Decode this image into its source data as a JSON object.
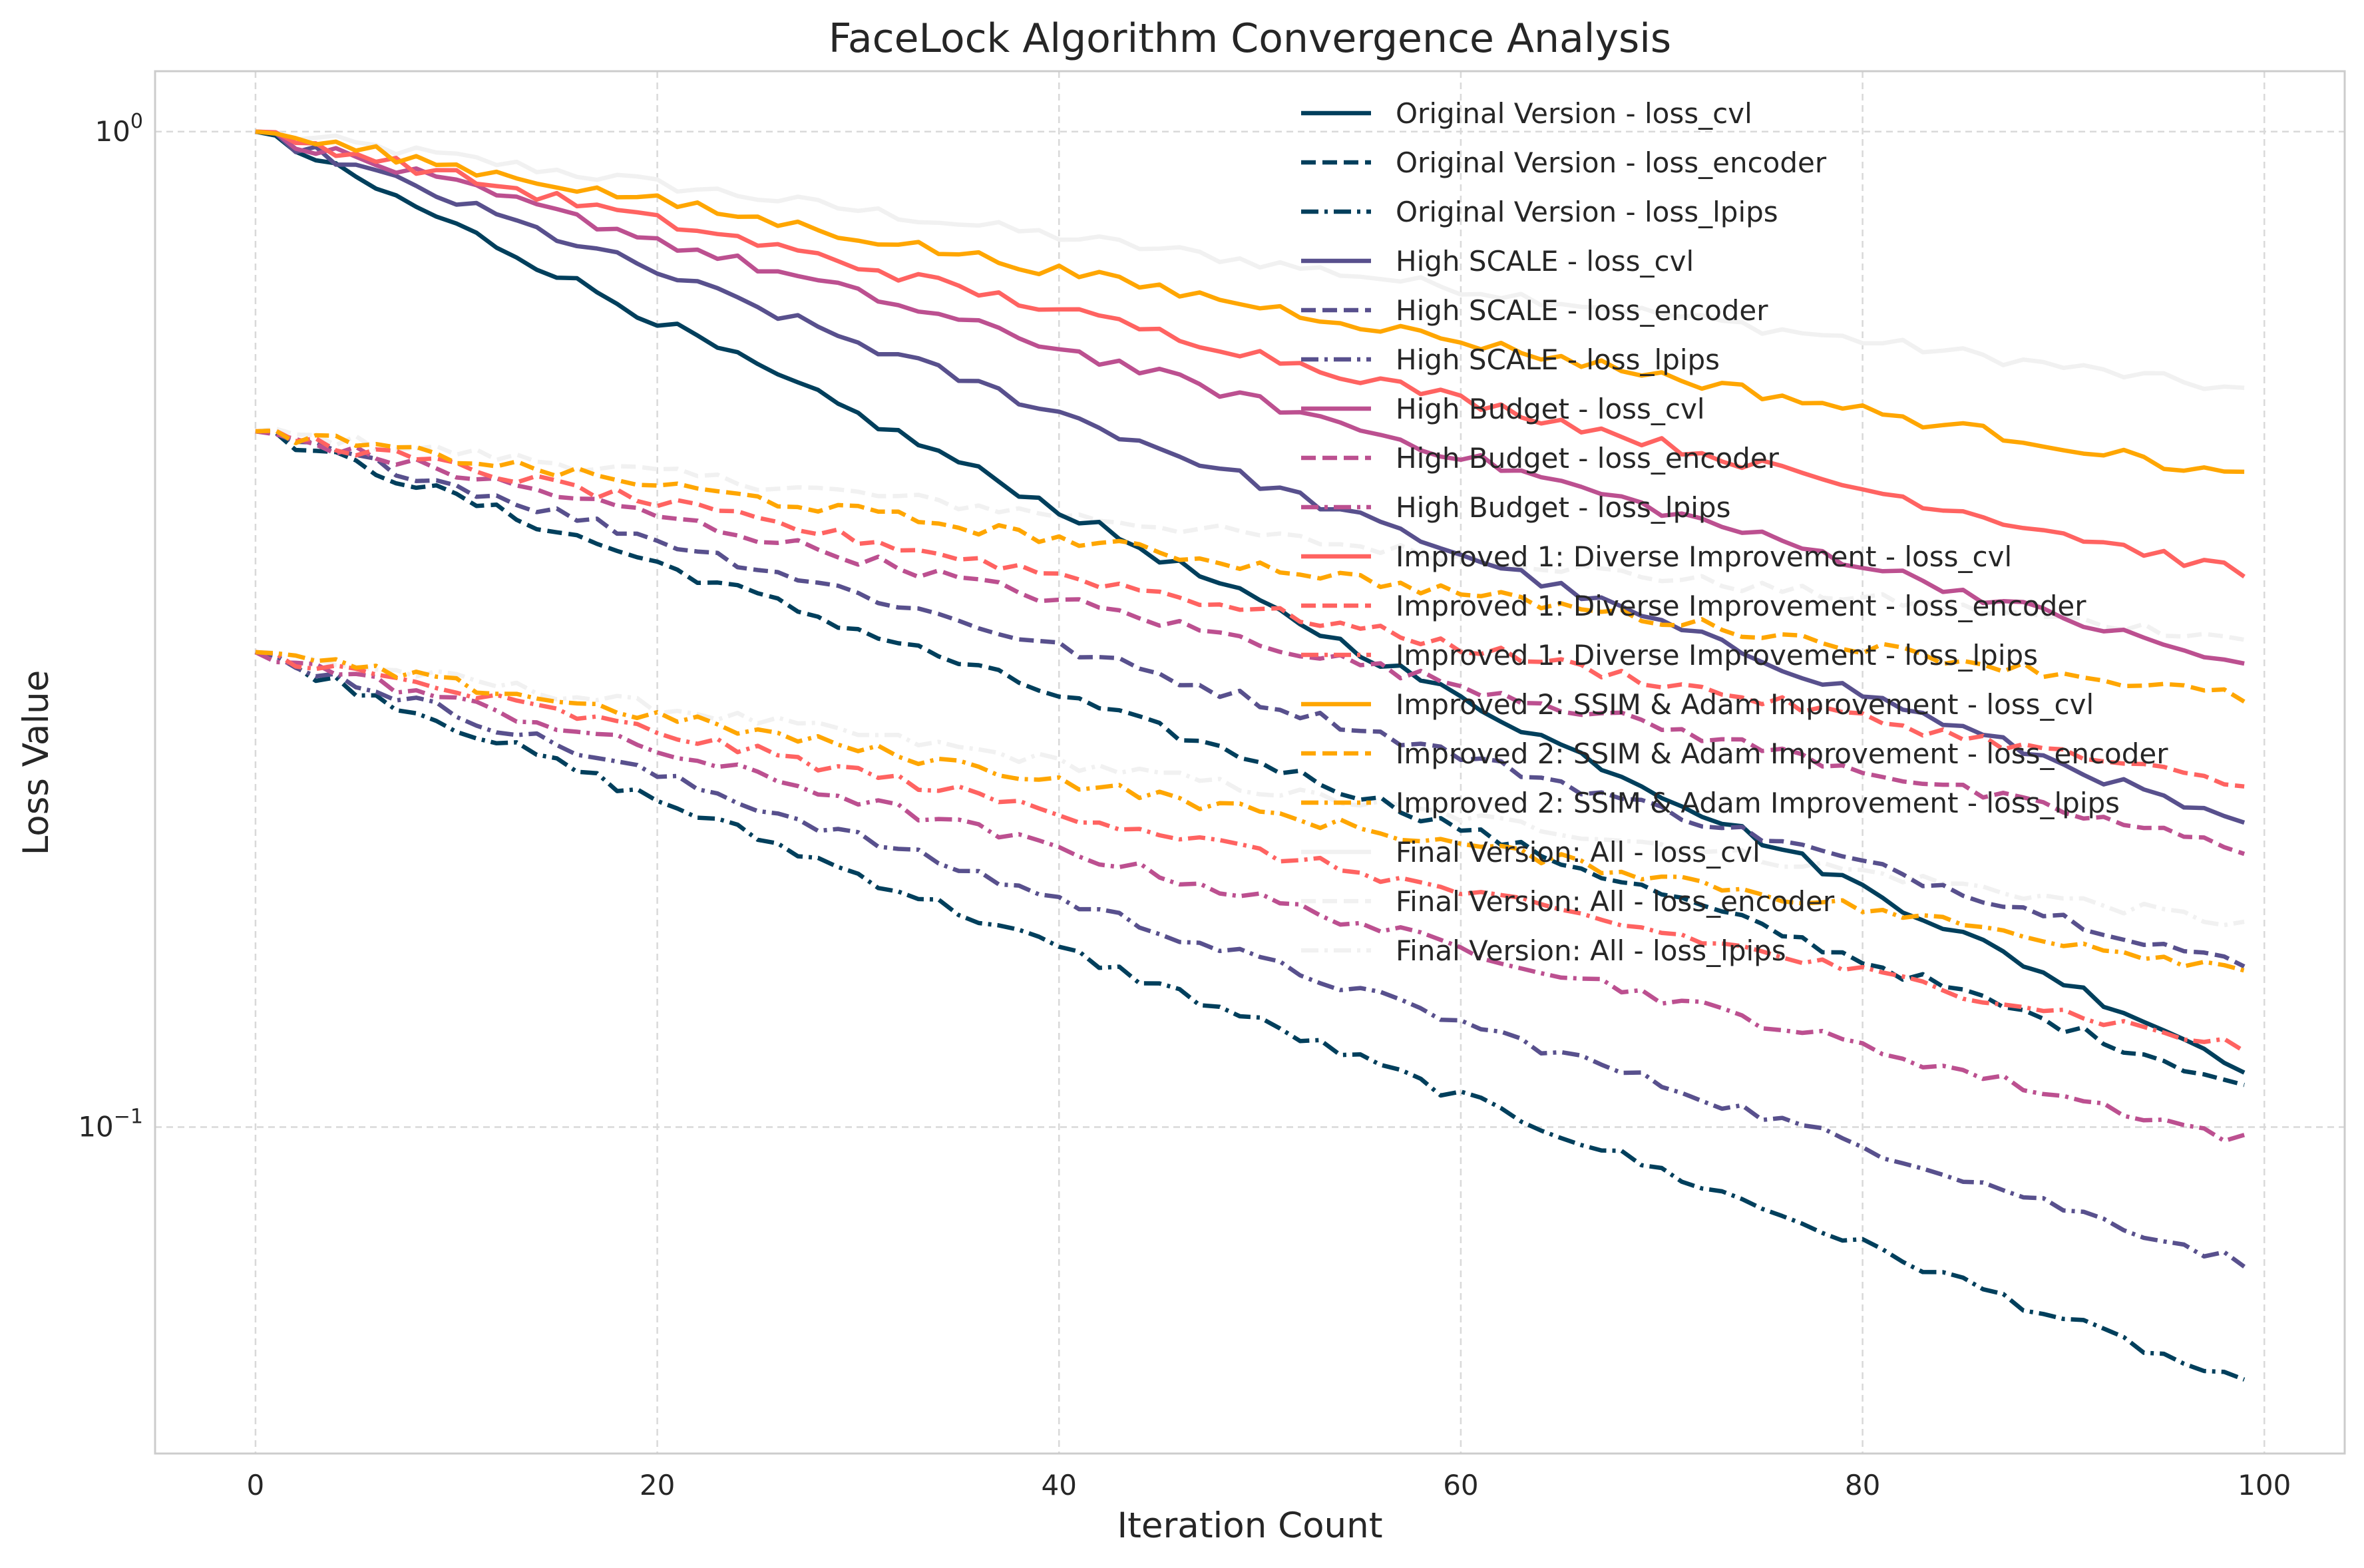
{
  "chart_data": {
    "type": "line",
    "title": "FaceLock Algorithm Convergence Analysis",
    "xlabel": "Iteration Count",
    "ylabel": "Loss Value",
    "xlim": [
      -5,
      104
    ],
    "ylim": [
      0.047,
      1.15
    ],
    "yscale": "log",
    "grid": true,
    "legend_position": "upper-right",
    "x_ticks": [
      0,
      20,
      40,
      60,
      80,
      100
    ],
    "x_tick_labels": [
      "0",
      "20",
      "40",
      "60",
      "80",
      "100"
    ],
    "y_ticks": [
      {
        "value": 1,
        "base": "10",
        "exp": "0"
      },
      {
        "value": 0.1,
        "base": "10",
        "exp": "−1"
      }
    ],
    "x": {
      "start": 0,
      "end": 99,
      "step": 1
    },
    "series": [
      {
        "name": "Original Version - loss_cvl",
        "color": "#003f5c",
        "style": "solid",
        "start": 1.0,
        "end": 0.115
      },
      {
        "name": "Original Version - loss_encoder",
        "color": "#003f5c",
        "style": "dashed",
        "start": 0.5,
        "end": 0.11
      },
      {
        "name": "Original Version - loss_lpips",
        "color": "#003f5c",
        "style": "dashdot",
        "start": 0.3,
        "end": 0.055
      },
      {
        "name": "High SCALE - loss_cvl",
        "color": "#58508d",
        "style": "solid",
        "start": 1.0,
        "end": 0.2
      },
      {
        "name": "High SCALE - loss_encoder",
        "color": "#58508d",
        "style": "dashed",
        "start": 0.5,
        "end": 0.145
      },
      {
        "name": "High SCALE - loss_lpips",
        "color": "#58508d",
        "style": "dashdot",
        "start": 0.3,
        "end": 0.073
      },
      {
        "name": "High Budget - loss_cvl",
        "color": "#bc5090",
        "style": "solid",
        "start": 1.0,
        "end": 0.29
      },
      {
        "name": "High Budget - loss_encoder",
        "color": "#bc5090",
        "style": "dashed",
        "start": 0.5,
        "end": 0.19
      },
      {
        "name": "High Budget - loss_lpips",
        "color": "#bc5090",
        "style": "dashdot",
        "start": 0.3,
        "end": 0.097
      },
      {
        "name": "Improved 1: Diverse Improvement - loss_cvl",
        "color": "#ff6361",
        "style": "solid",
        "start": 1.0,
        "end": 0.36
      },
      {
        "name": "Improved 1: Diverse Improvement - loss_encoder",
        "color": "#ff6361",
        "style": "dashed",
        "start": 0.5,
        "end": 0.22
      },
      {
        "name": "Improved 1: Diverse Improvement - loss_lpips",
        "color": "#ff6361",
        "style": "dashdot",
        "start": 0.3,
        "end": 0.12
      },
      {
        "name": "Improved 2: SSIM & Adam Improvement - loss_cvl",
        "color": "#ffa600",
        "style": "solid",
        "start": 1.0,
        "end": 0.45
      },
      {
        "name": "Improved 2: SSIM & Adam Improvement - loss_encoder",
        "color": "#ffa600",
        "style": "dashed",
        "start": 0.5,
        "end": 0.27
      },
      {
        "name": "Improved 2: SSIM & Adam Improvement - loss_lpips",
        "color": "#ffa600",
        "style": "dashdot",
        "start": 0.3,
        "end": 0.144
      },
      {
        "name": "Final Version: All - loss_cvl",
        "color": "#f1f1f1",
        "style": "solid",
        "start": 1.0,
        "end": 0.55
      },
      {
        "name": "Final Version: All - loss_encoder",
        "color": "#f1f1f1",
        "style": "dashed",
        "start": 0.5,
        "end": 0.31
      },
      {
        "name": "Final Version: All - loss_lpips",
        "color": "#f1f1f1",
        "style": "dashdot",
        "start": 0.3,
        "end": 0.16
      }
    ]
  }
}
